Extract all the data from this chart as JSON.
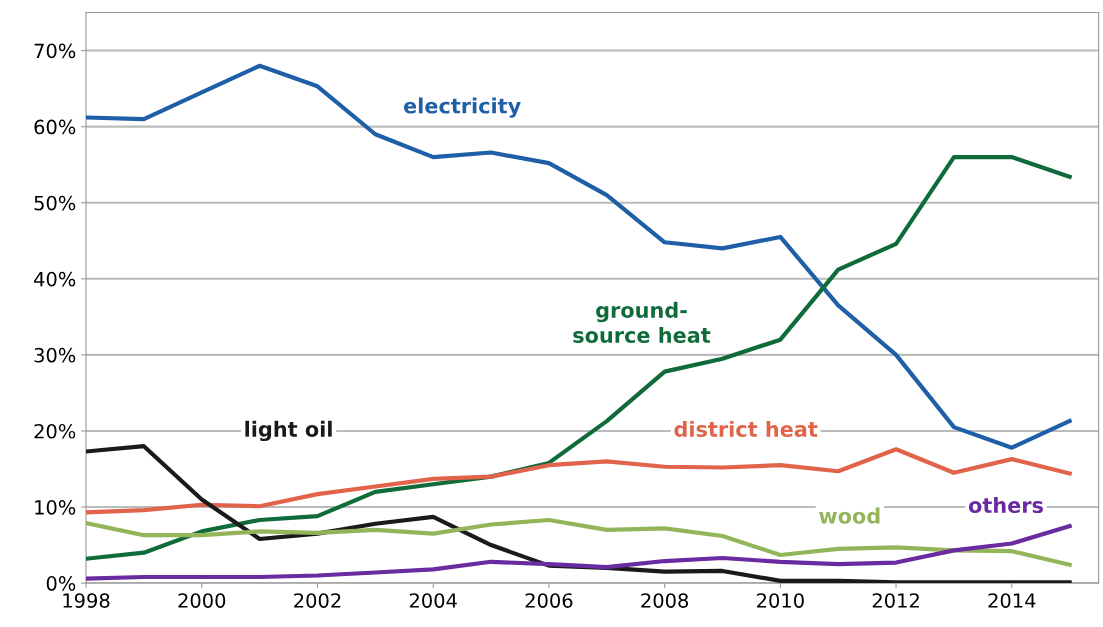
{
  "chart_data": {
    "type": "line",
    "x": [
      1998,
      1999,
      2000,
      2001,
      2002,
      2003,
      2004,
      2005,
      2006,
      2007,
      2008,
      2009,
      2010,
      2011,
      2012,
      2013,
      2014,
      2015
    ],
    "series": [
      {
        "name": "electricity",
        "color": "#1f5fa8",
        "values": [
          61.2,
          61.0,
          64.5,
          68,
          65.3,
          59,
          56,
          56.6,
          55.2,
          51,
          44.8,
          44,
          45.5,
          36.5,
          30,
          20.5,
          17.8,
          21.3
        ]
      },
      {
        "name": "ground-\nsource heat",
        "color": "#0f6b3a",
        "values": [
          3.2,
          4,
          6.8,
          8.3,
          8.8,
          12,
          13,
          14,
          15.8,
          21.3,
          27.8,
          29.5,
          32,
          41.2,
          44.6,
          56,
          56,
          53.4
        ]
      },
      {
        "name": "district heat",
        "color": "#e0634a",
        "values": [
          9.3,
          9.6,
          10.3,
          10.1,
          11.7,
          12.7,
          13.7,
          14,
          15.5,
          16,
          15.3,
          15.2,
          15.5,
          14.7,
          17.6,
          14.5,
          16.3,
          14.4
        ]
      },
      {
        "name": "light oil",
        "color": "#1a1a1a",
        "values": [
          17.3,
          18,
          11,
          5.8,
          6.5,
          7.8,
          8.7,
          5,
          2.3,
          2,
          1.5,
          1.6,
          0.3,
          0.3,
          0.1,
          0.1,
          0.1,
          0.1
        ]
      },
      {
        "name": "wood",
        "color": "#93b55a",
        "values": [
          7.9,
          6.3,
          6.3,
          6.8,
          6.6,
          7,
          6.5,
          7.7,
          8.3,
          7,
          7.2,
          6.2,
          3.7,
          4.5,
          4.7,
          4.3,
          4.2,
          2.4
        ]
      },
      {
        "name": "others",
        "color": "#6a2aa0",
        "values": [
          0.6,
          0.8,
          0.8,
          0.8,
          1.0,
          1.4,
          1.8,
          2.8,
          2.5,
          2.1,
          2.9,
          3.3,
          2.8,
          2.5,
          2.7,
          4.3,
          5.2,
          7.5
        ]
      }
    ],
    "xlim": [
      1998,
      2015.5
    ],
    "ylim": [
      0,
      75
    ],
    "xticks": [
      1998,
      2000,
      2002,
      2004,
      2006,
      2008,
      2010,
      2012,
      2014
    ],
    "yticks": [
      {
        "value": 0,
        "label": "0%"
      },
      {
        "value": 10,
        "label": "10%"
      },
      {
        "value": 20,
        "label": "20%"
      },
      {
        "value": 30,
        "label": "30%"
      },
      {
        "value": 40,
        "label": "40%"
      },
      {
        "value": 50,
        "label": "50%"
      },
      {
        "value": 60,
        "label": "60%"
      },
      {
        "value": 70,
        "label": "70%"
      }
    ],
    "grid": "y",
    "legend": false,
    "marker": "none",
    "line_style": "solid"
  }
}
